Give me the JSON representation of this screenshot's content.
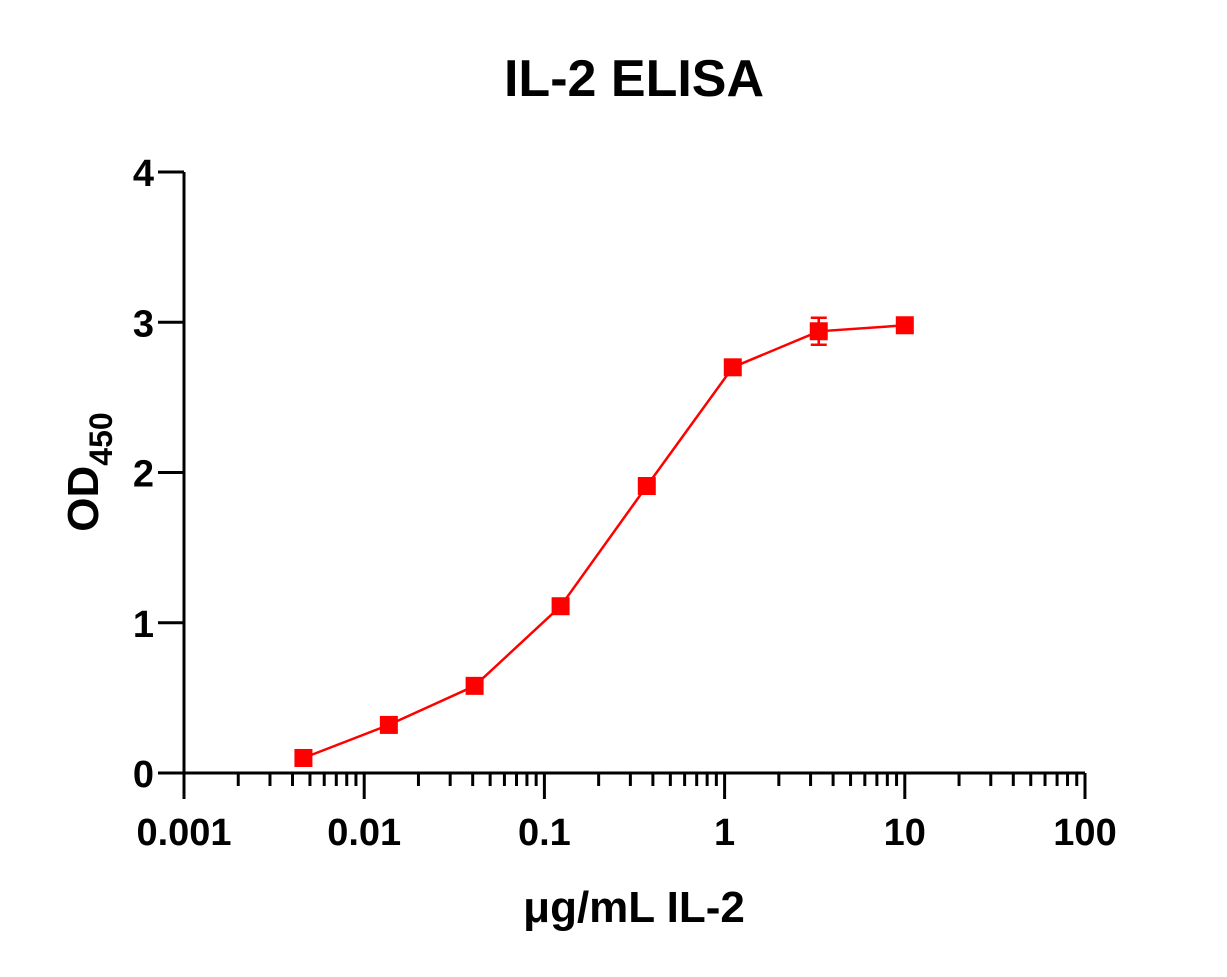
{
  "chart_data": {
    "type": "line",
    "title": "IL-2 ELISA",
    "xlabel": "μg/mL IL-2",
    "ylabel_main": "OD",
    "ylabel_sub": "450",
    "xscale": "log",
    "xlim": [
      0.001,
      100
    ],
    "ylim": [
      0,
      4
    ],
    "x_ticks": [
      0.001,
      0.01,
      0.1,
      1,
      10,
      100
    ],
    "x_tick_labels": [
      "0.001",
      "0.01",
      "0.1",
      "1",
      "10",
      "100"
    ],
    "y_ticks": [
      0,
      1,
      2,
      3,
      4
    ],
    "y_tick_labels": [
      "0",
      "1",
      "2",
      "3",
      "4"
    ],
    "grid": false,
    "series": [
      {
        "color": "#ff0000",
        "marker": "square",
        "x": [
          0.0046,
          0.0137,
          0.041,
          0.123,
          0.37,
          1.11,
          3.33,
          10
        ],
        "y": [
          0.1,
          0.32,
          0.58,
          1.11,
          1.91,
          2.7,
          2.94,
          2.98
        ],
        "error": [
          0,
          0,
          0,
          0,
          0,
          0,
          0.09,
          0
        ]
      }
    ]
  }
}
